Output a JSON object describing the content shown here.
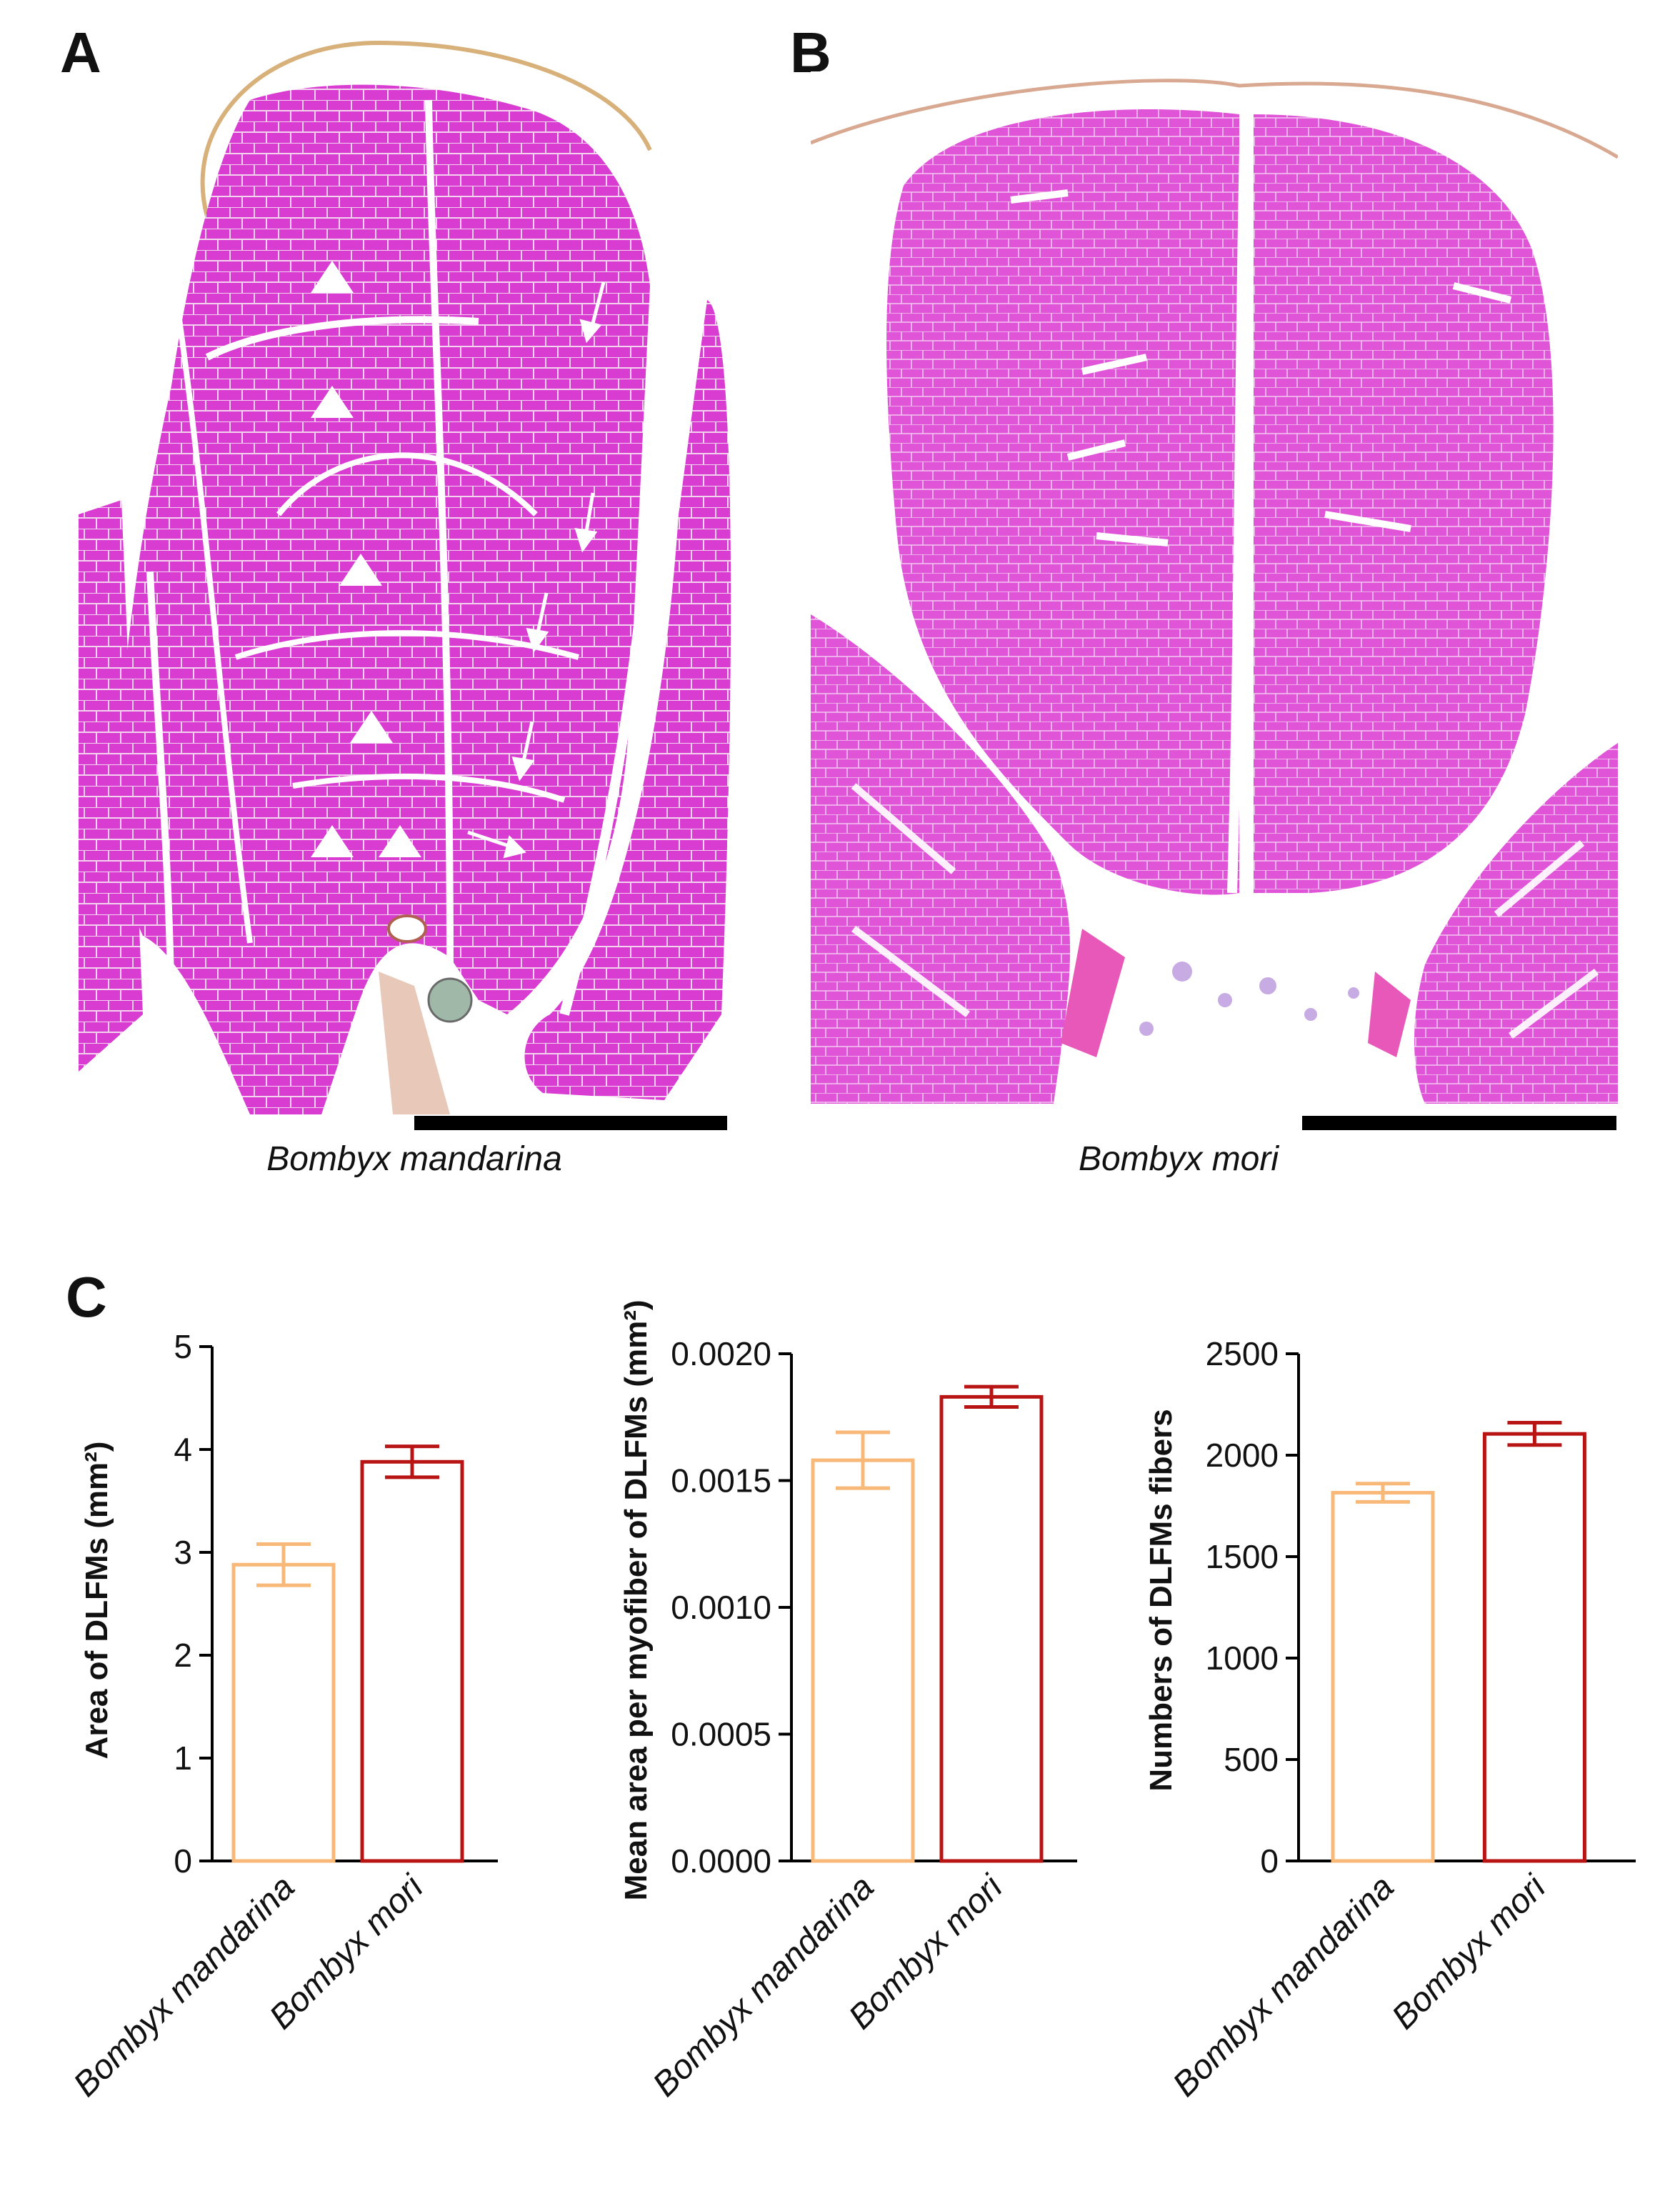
{
  "panels": {
    "a": {
      "letter": "A",
      "caption": "Bombyx mandarina"
    },
    "b": {
      "letter": "B",
      "caption": "Bombyx mori"
    },
    "c": {
      "letter": "C"
    }
  },
  "colors": {
    "tissue": "#d83cd0",
    "tissue_light": "#e868dc",
    "nuclei": "#7a3cc8",
    "mandarina": "#f8b878",
    "mori": "#b81414"
  },
  "chart_data": [
    {
      "type": "bar",
      "categories": [
        "Bombyx mandarina",
        "Bombyx mori"
      ],
      "values": [
        2.88,
        3.88
      ],
      "errors": [
        0.2,
        0.15
      ],
      "xlabel": "",
      "ylabel": "Area of DLFMs (mm²)",
      "ylim": [
        0,
        5
      ],
      "yticks": [
        "0",
        "1",
        "2",
        "3",
        "4",
        "5"
      ],
      "tick_values": [
        0,
        1,
        2,
        3,
        4,
        5
      ],
      "grid": false
    },
    {
      "type": "bar",
      "categories": [
        "Bombyx mandarina",
        "Bombyx mori"
      ],
      "values": [
        0.00158,
        0.00183
      ],
      "errors": [
        0.00011,
        4e-05
      ],
      "xlabel": "",
      "ylabel": "Mean area per myofiber of DLFMs (mm²)",
      "ylim": [
        0,
        0.002
      ],
      "yticks": [
        "0.0000",
        "0.0005",
        "0.0010",
        "0.0015",
        "0.0020"
      ],
      "tick_values": [
        0,
        0.0005,
        0.001,
        0.0015,
        0.002
      ],
      "grid": false
    },
    {
      "type": "bar",
      "categories": [
        "Bombyx mandarina",
        "Bombyx mori"
      ],
      "values": [
        1815,
        2105
      ],
      "errors": [
        45,
        55
      ],
      "xlabel": "",
      "ylabel": "Numbers of DLFMs fibers",
      "ylim": [
        0,
        2500
      ],
      "yticks": [
        "0",
        "500",
        "1000",
        "1500",
        "2000",
        "2500"
      ],
      "tick_values": [
        0,
        500,
        1000,
        1500,
        2000,
        2500
      ],
      "grid": false
    }
  ]
}
